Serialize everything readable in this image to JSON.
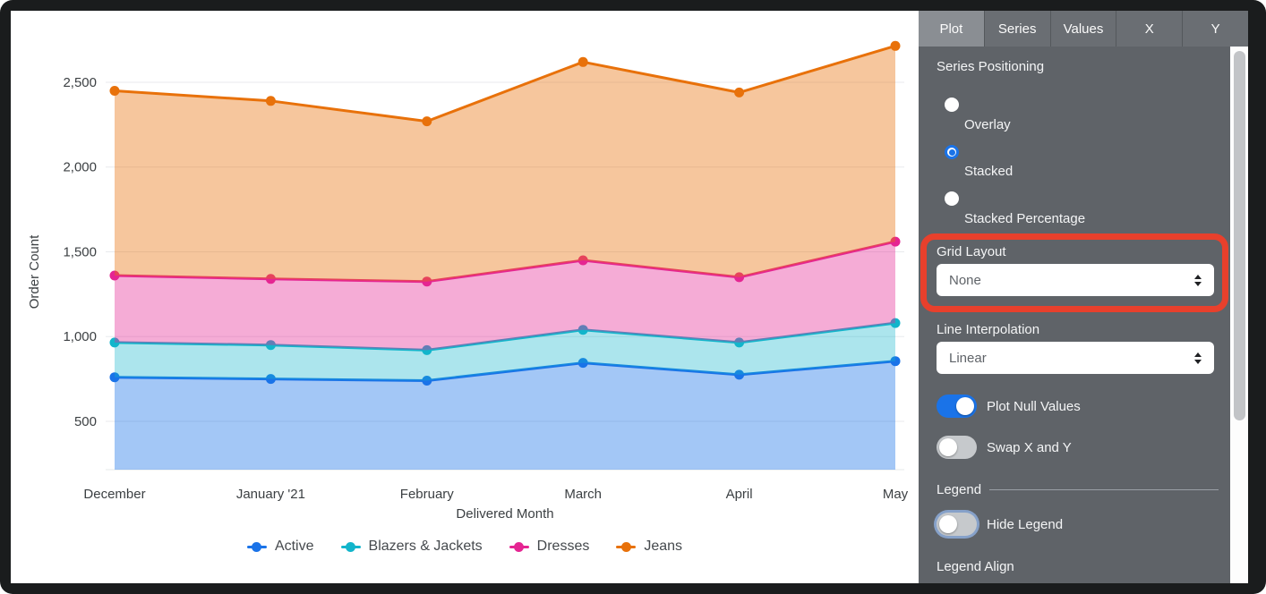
{
  "chart_data": {
    "type": "area",
    "stacked": true,
    "title": "",
    "xlabel": "Delivered Month",
    "ylabel": "Order Count",
    "categories": [
      "December",
      "January '21",
      "February",
      "March",
      "April",
      "May"
    ],
    "series": [
      {
        "name": "Active",
        "color": "#1A73E8",
        "area_fill": "rgba(26,115,232,0.40)",
        "values": [
          760,
          750,
          740,
          845,
          775,
          855
        ]
      },
      {
        "name": "Blazers & Jackets",
        "color": "#12B5CB",
        "area_fill": "rgba(18,181,203,0.35)",
        "values": [
          205,
          200,
          180,
          195,
          190,
          225
        ]
      },
      {
        "name": "Dresses",
        "color": "#E52592",
        "area_fill": "rgba(229,37,146,0.38)",
        "values": [
          395,
          390,
          405,
          410,
          385,
          480
        ]
      },
      {
        "name": "Jeans",
        "color": "#E8710A",
        "area_fill": "rgba(232,113,10,0.40)",
        "values": [
          1090,
          1050,
          945,
          1170,
          1090,
          1155
        ]
      }
    ],
    "stacked_totals": {
      "Active": [
        760,
        750,
        740,
        845,
        775,
        855
      ],
      "Blazers & Jackets": [
        965,
        950,
        920,
        1040,
        965,
        1080
      ],
      "Dresses": [
        1360,
        1340,
        1325,
        1450,
        1350,
        1560
      ],
      "Jeans": [
        2450,
        2390,
        2270,
        2620,
        2440,
        2715
      ]
    },
    "yticks": [
      500,
      1000,
      1500,
      2000,
      2500
    ],
    "ytick_labels": [
      "500",
      "1,000",
      "1,500",
      "2,000",
      "2,500"
    ],
    "ylim": [
      215,
      2790
    ],
    "grid": "horizontal",
    "legend_position": "bottom"
  },
  "panel": {
    "tabs": [
      {
        "label": "Plot",
        "selected": true
      },
      {
        "label": "Series",
        "selected": false
      },
      {
        "label": "Values",
        "selected": false
      },
      {
        "label": "X",
        "selected": false
      },
      {
        "label": "Y",
        "selected": false
      }
    ],
    "series_positioning": {
      "label": "Series Positioning",
      "options": [
        {
          "label": "Overlay",
          "selected": false
        },
        {
          "label": "Stacked",
          "selected": true
        },
        {
          "label": "Stacked Percentage",
          "selected": false
        }
      ]
    },
    "grid_layout": {
      "label": "Grid Layout",
      "value": "None"
    },
    "line_interpolation": {
      "label": "Line Interpolation",
      "value": "Linear"
    },
    "toggles": {
      "plot_null_values": {
        "label": "Plot Null Values",
        "on": true
      },
      "swap_x_y": {
        "label": "Swap X and Y",
        "on": false
      },
      "hide_legend": {
        "label": "Hide Legend",
        "on": false
      }
    },
    "legend_section": {
      "label": "Legend"
    },
    "legend_align": {
      "label": "Legend Align"
    }
  },
  "annotation": {
    "shape": "rounded-rect",
    "color": "#E8402C",
    "target": "Grid Layout"
  }
}
